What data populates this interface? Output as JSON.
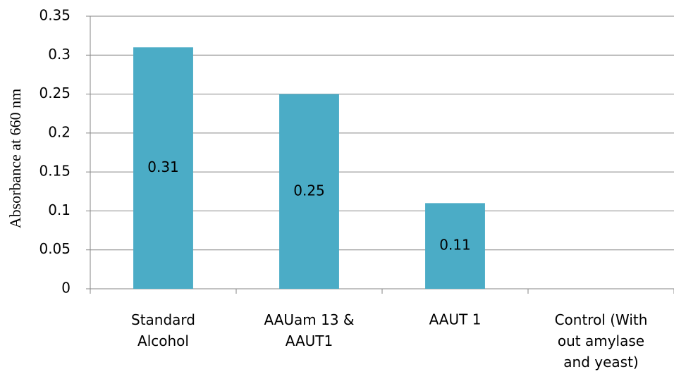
{
  "chart_data": {
    "type": "bar",
    "y_label": "Absorbance at 660 nm",
    "categories": [
      "Standard\nAlcohol",
      "AAUam 13 &\nAAUT1",
      "AAUT 1",
      "Control (With\nout amylase\nand yeast)"
    ],
    "values": [
      0.31,
      0.25,
      0.11,
      null
    ],
    "color": "#4bacc6",
    "ylim": [
      0,
      0.35
    ],
    "yticks": [
      0,
      0.05,
      0.1,
      0.15,
      0.2,
      0.25,
      0.3,
      0.35
    ],
    "grid": true
  }
}
